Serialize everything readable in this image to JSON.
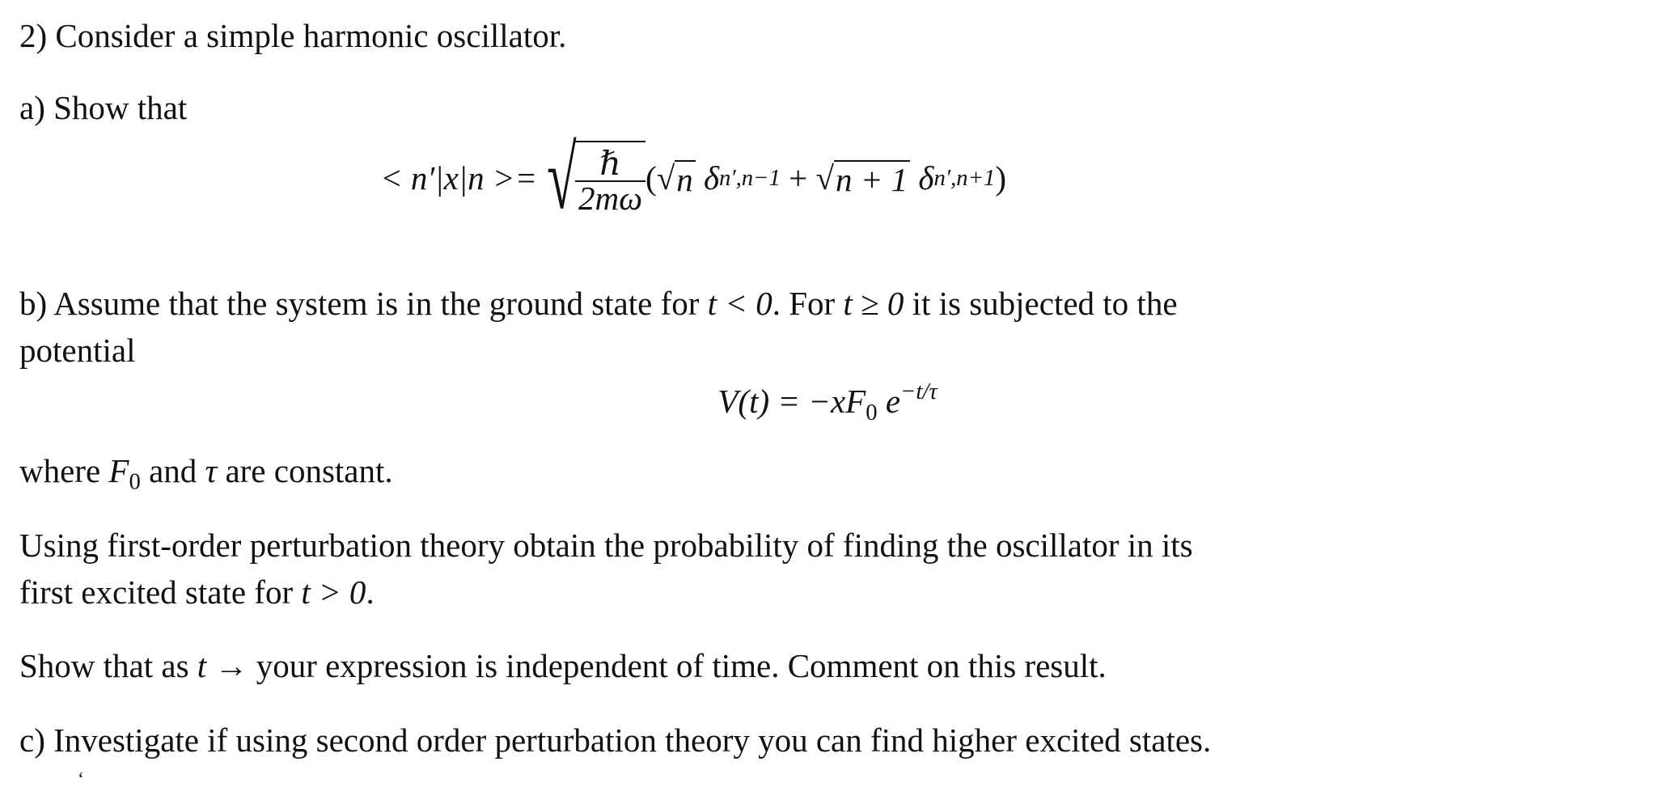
{
  "question": {
    "intro": "2) Consider a simple harmonic oscillator.",
    "part_a": {
      "label": "a) Show that",
      "equation": {
        "lhs": "< n′|x|n >=",
        "numerator": "ℏ",
        "denominator": "2mω",
        "open": "(",
        "term1_rad": "n",
        "delta1": "δ",
        "delta1_sub": "n′,n−1",
        "plus": "+",
        "term2_rad": "n + 1",
        "delta2": "δ",
        "delta2_sub": "n′,n+1",
        "close": ")"
      }
    },
    "part_b": {
      "text_line1_a": "b) Assume that the system is in the ground state for ",
      "cond1": "t < 0",
      "text_line1_b": ". For ",
      "cond2": "t ≥ 0",
      "text_line1_c": " it is subjected to the",
      "text_line2": "potential",
      "potential_lhs": "V(t) = −xF",
      "potential_sub": "0",
      "potential_e": " e",
      "potential_exp": "−t/τ",
      "where_a": "where ",
      "where_F": "F",
      "where_F_sub": "0",
      "where_b": " and ",
      "where_tau": "τ",
      "where_c": " are constant.",
      "using_line1": "Using first-order perturbation theory obtain the probability of finding the oscillator in its",
      "using_line2_a": "first excited state for ",
      "using_line2_cond": "t > 0",
      "using_line2_b": ".",
      "show_a": "Show that as ",
      "show_t": "t",
      "show_b": " → your expression is independent of time. Comment on this result."
    },
    "part_c": "c) Investigate if using second order perturbation theory you can find higher excited states.",
    "stray_mark": "‘"
  }
}
